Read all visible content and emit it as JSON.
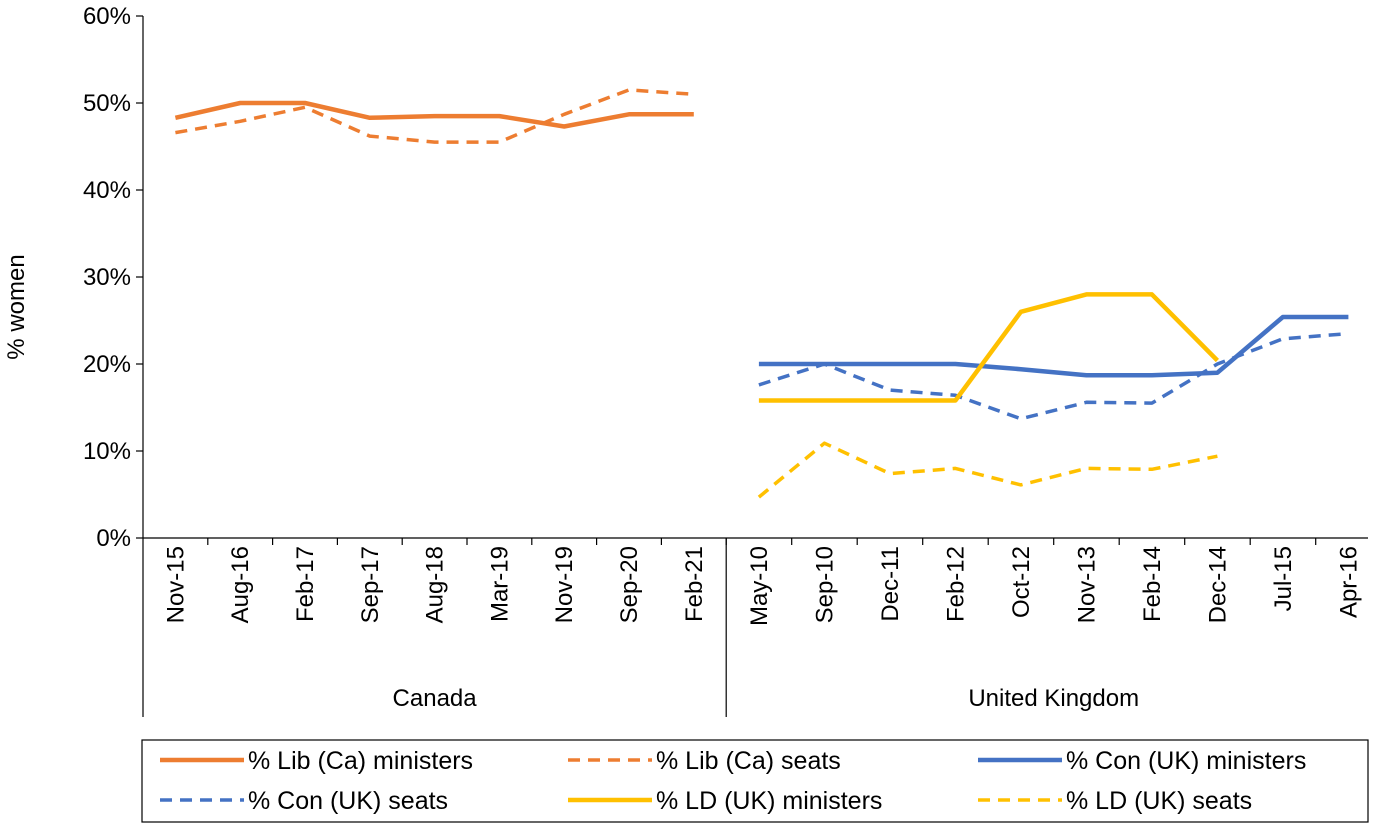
{
  "chart_data": {
    "type": "line",
    "ylabel": "% women",
    "ylim": [
      0,
      0.6
    ],
    "y_ticks": [
      "0%",
      "10%",
      "20%",
      "30%",
      "40%",
      "50%",
      "60%"
    ],
    "grid": false,
    "legend_position": "bottom",
    "groups": [
      {
        "name": "Canada",
        "categories": [
          "Nov-15",
          "Aug-16",
          "Feb-17",
          "Sep-17",
          "Aug-18",
          "Mar-19",
          "Nov-19",
          "Sep-20",
          "Feb-21"
        ],
        "series": [
          {
            "name": "% Lib (Ca) ministers",
            "color": "#ED7D31",
            "style": "solid",
            "values": [
              0.483,
              0.5,
              0.5,
              0.483,
              0.485,
              0.485,
              0.473,
              0.487,
              0.487
            ]
          },
          {
            "name": "% Lib (Ca) seats",
            "color": "#ED7D31",
            "style": "dashed",
            "values": [
              0.466,
              0.479,
              0.495,
              0.462,
              0.455,
              0.455,
              0.487,
              0.515,
              0.51
            ]
          }
        ]
      },
      {
        "name": "United Kingdom",
        "categories": [
          "May-10",
          "Sep-10",
          "Dec-11",
          "Feb-12",
          "Oct-12",
          "Nov-13",
          "Feb-14",
          "Dec-14",
          "Jul-15",
          "Apr-16"
        ],
        "series": [
          {
            "name": "% Con (UK) ministers",
            "color": "#4472C4",
            "style": "solid",
            "values": [
              0.2,
              0.2,
              0.2,
              0.2,
              0.194,
              0.187,
              0.187,
              0.19,
              0.254,
              0.254
            ]
          },
          {
            "name": "% Con (UK) seats",
            "color": "#4472C4",
            "style": "dashed",
            "values": [
              0.176,
              0.2,
              0.17,
              0.164,
              0.137,
              0.156,
              0.155,
              0.2,
              0.229,
              0.235
            ]
          },
          {
            "name": "% LD (UK) ministers",
            "color": "#FFC000",
            "style": "solid",
            "values": [
              0.158,
              0.158,
              0.158,
              0.158,
              0.26,
              0.28,
              0.28,
              0.204,
              null,
              null
            ]
          },
          {
            "name": "% LD (UK) seats",
            "color": "#FFC000",
            "style": "dashed",
            "values": [
              0.047,
              0.109,
              0.074,
              0.08,
              0.061,
              0.08,
              0.079,
              0.094,
              null,
              null
            ]
          }
        ]
      }
    ],
    "legend": [
      {
        "name": "% Lib (Ca) ministers",
        "color": "#ED7D31",
        "style": "solid"
      },
      {
        "name": "% Lib (Ca) seats",
        "color": "#ED7D31",
        "style": "dashed"
      },
      {
        "name": "% Con (UK) ministers",
        "color": "#4472C4",
        "style": "solid"
      },
      {
        "name": "% Con (UK) seats",
        "color": "#4472C4",
        "style": "dashed"
      },
      {
        "name": "% LD (UK) ministers",
        "color": "#FFC000",
        "style": "solid"
      },
      {
        "name": "% LD (UK) seats",
        "color": "#FFC000",
        "style": "dashed"
      }
    ]
  }
}
